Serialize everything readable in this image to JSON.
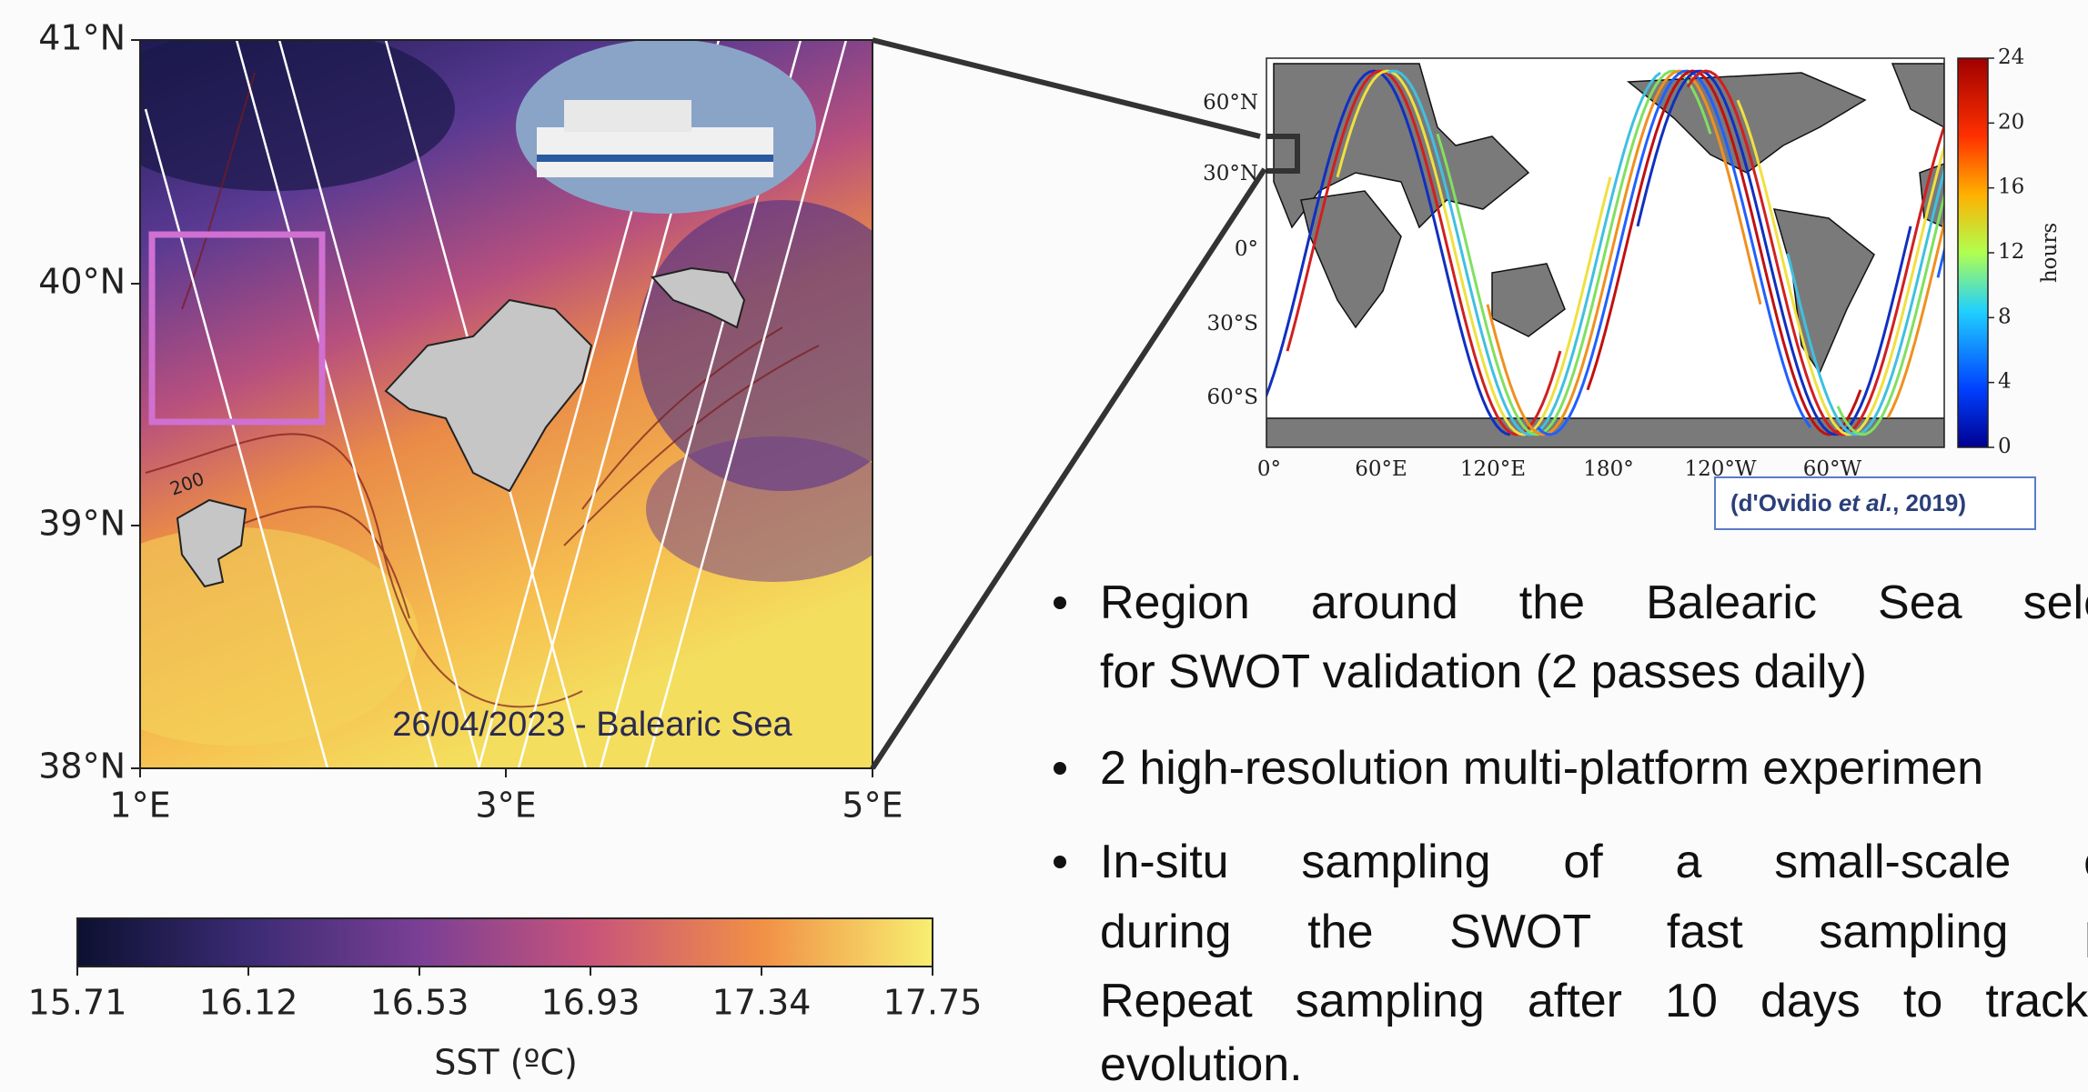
{
  "left_map": {
    "lat_labels": [
      "41°N",
      "40°N",
      "39°N",
      "38°N"
    ],
    "lon_labels": [
      "1°E",
      "3°E",
      "5°E"
    ],
    "contour_label": "200",
    "caption": "26/04/2023 - Balearic Sea",
    "colorbar": {
      "ticks": [
        "15.71",
        "16.12",
        "16.53",
        "16.93",
        "17.34",
        "17.75"
      ],
      "label": "SST (ºC)"
    }
  },
  "world_map": {
    "lat_labels": [
      "60°N",
      "30°N",
      "0°",
      "30°S",
      "60°S"
    ],
    "lon_labels": [
      "0°",
      "60°E",
      "120°E",
      "180°",
      "120°W",
      "60°W"
    ],
    "colorbar": {
      "ticks": [
        "24",
        "20",
        "16",
        "12",
        "8",
        "4",
        "0"
      ],
      "label": "hours"
    },
    "citation": {
      "before": "(d'Ovidio ",
      "italic": "et al.",
      "after": ", 2019)"
    }
  },
  "bullets": [
    [
      "Region around the Balearic Sea sele",
      "for SWOT validation (2 passes daily)"
    ],
    [
      "2 high-resolution multi-platform experimen"
    ],
    [
      "In-situ sampling of a small-scale e",
      "during the SWOT fast sampling ph",
      "Repeat sampling after 10 days to track",
      "evolution."
    ]
  ]
}
